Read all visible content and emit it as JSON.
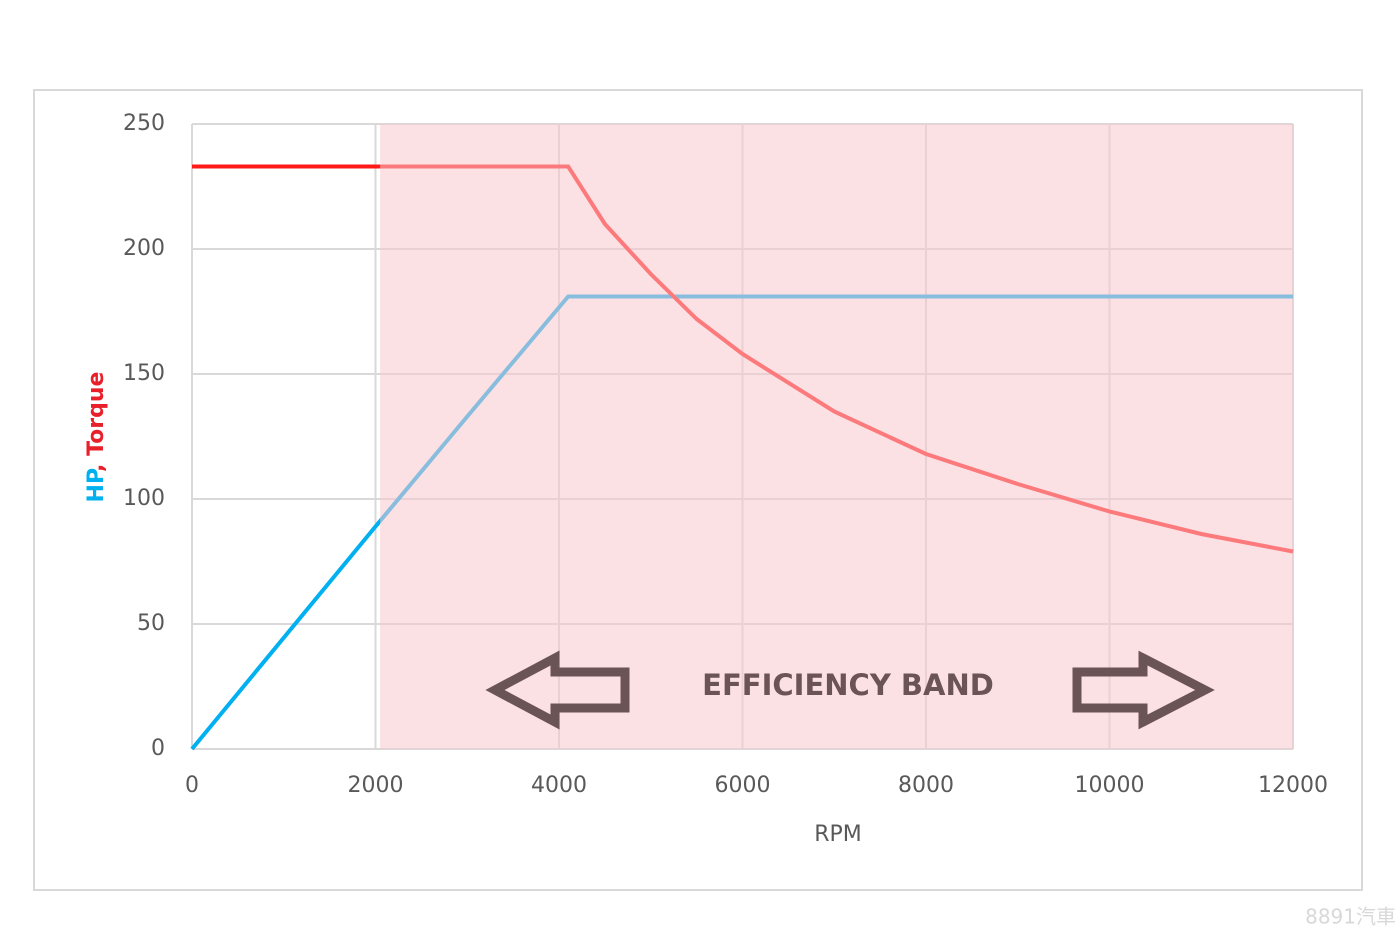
{
  "chart_data": {
    "type": "line",
    "x": [
      0,
      2000,
      3000,
      4100,
      4500,
      5000,
      5500,
      6000,
      7000,
      8000,
      9000,
      10000,
      11000,
      12000
    ],
    "series": [
      {
        "name": "HP",
        "color": "#00b0f0",
        "values": [
          0,
          89,
          133,
          181,
          181,
          181,
          181,
          181,
          181,
          181,
          181,
          181,
          181,
          181
        ]
      },
      {
        "name": "Torque",
        "color": "#ff1a1a",
        "values": [
          233,
          233,
          233,
          233,
          210,
          190,
          172,
          158,
          135,
          118,
          106,
          95,
          86,
          79
        ]
      }
    ],
    "xlim": [
      0,
      12000
    ],
    "xticks": [
      0,
      2000,
      4000,
      6000,
      8000,
      10000,
      12000
    ],
    "ylim": [
      0,
      250
    ],
    "yticks": [
      0,
      50,
      100,
      150,
      200,
      250
    ],
    "x_label": "RPM",
    "y_label_parts": [
      {
        "text": "HP",
        "color": "#00b0f0"
      },
      {
        "text": ", Torque",
        "color": "#e8202a"
      }
    ],
    "grid": true,
    "band": {
      "xlim": [
        2050,
        12000
      ],
      "label": "EFFICIENCY BAND",
      "color": "#f9c8cd"
    },
    "watermark": "8891汽車"
  }
}
